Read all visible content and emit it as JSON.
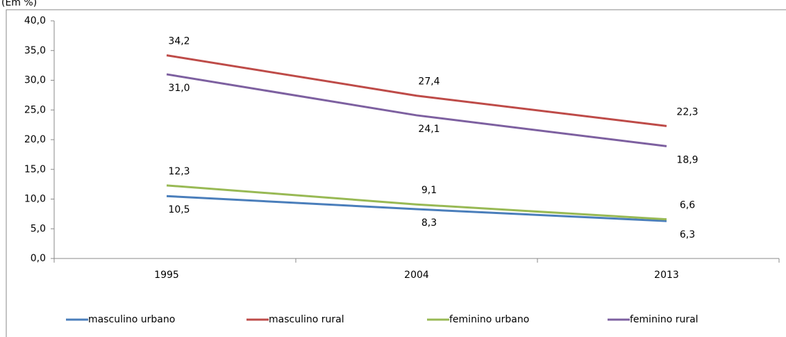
{
  "chart_data": {
    "type": "line",
    "subtitle": "(Em %)",
    "categories": [
      "1995",
      "2004",
      "2013"
    ],
    "series": [
      {
        "name": "masculino urbano",
        "color": "#4a7ebb",
        "values": [
          10.5,
          8.3,
          6.3
        ],
        "value_labels": [
          "10,5",
          "8,3",
          "6,3"
        ]
      },
      {
        "name": "masculino rural",
        "color": "#be4b48",
        "values": [
          34.2,
          27.4,
          22.3
        ],
        "value_labels": [
          "34,2",
          "27,4",
          "22,3"
        ]
      },
      {
        "name": "feminino urbano",
        "color": "#98b954",
        "values": [
          12.3,
          9.1,
          6.6
        ],
        "value_labels": [
          "12,3",
          "9,1",
          "6,6"
        ]
      },
      {
        "name": "feminino rural",
        "color": "#7d60a0",
        "values": [
          31.0,
          24.1,
          18.9
        ],
        "value_labels": [
          "31,0",
          "24,1",
          "18,9"
        ]
      }
    ],
    "ylim": [
      0,
      40
    ],
    "yticks": [
      {
        "value": 0,
        "label": "0,0"
      },
      {
        "value": 5,
        "label": "5,0"
      },
      {
        "value": 10,
        "label": "10,0"
      },
      {
        "value": 15,
        "label": "15,0"
      },
      {
        "value": 20,
        "label": "20,0"
      },
      {
        "value": 25,
        "label": "25,0"
      },
      {
        "value": 30,
        "label": "30,0"
      },
      {
        "value": 35,
        "label": "35,0"
      },
      {
        "value": 40,
        "label": "40,0"
      }
    ],
    "legend": "bottom"
  }
}
